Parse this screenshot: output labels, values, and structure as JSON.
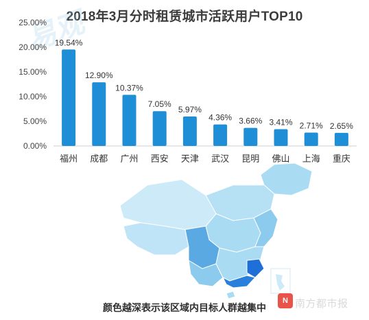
{
  "chart_data": {
    "type": "bar",
    "title": "2018年3月分时租赁城市活跃用户TOP10",
    "categories": [
      "福州",
      "成都",
      "广州",
      "西安",
      "天津",
      "武汉",
      "昆明",
      "佛山",
      "上海",
      "重庆"
    ],
    "values": [
      19.54,
      12.9,
      10.37,
      7.05,
      5.97,
      4.36,
      3.66,
      3.41,
      2.71,
      2.65
    ],
    "value_labels": [
      "19.54%",
      "12.90%",
      "10.37%",
      "7.05%",
      "5.97%",
      "4.36%",
      "3.66%",
      "3.41%",
      "2.71%",
      "2.65%"
    ],
    "ylim": [
      0,
      25
    ],
    "y_ticks": [
      "0.00%",
      "5.00%",
      "10.00%",
      "15.00%",
      "20.00%",
      "25.00%"
    ],
    "xlabel": "",
    "ylabel": "",
    "grid": false,
    "bar_color": "#1e8fd6"
  },
  "watermark": "易观",
  "map": {
    "caption": "颜色越深表示该区域内目标人群越集中",
    "colors": [
      "#cdeaf8",
      "#a9dcf3",
      "#8ccbee",
      "#5aa9e3",
      "#1f6fd8"
    ]
  },
  "source": "南方都市报",
  "logo_text": "N"
}
